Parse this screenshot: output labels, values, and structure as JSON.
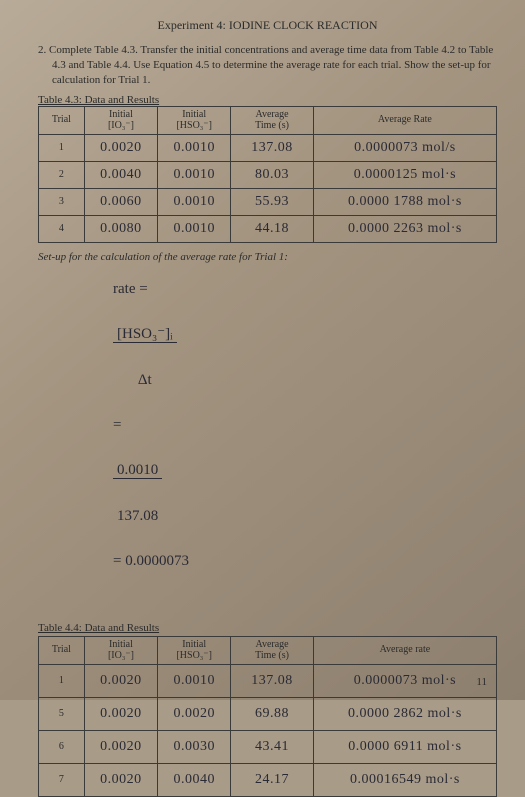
{
  "header": {
    "title": "Experiment 4: IODINE CLOCK REACTION"
  },
  "question": {
    "num": "2.",
    "text": "Complete Table 4.3. Transfer the initial concentrations and average time data from Table 4.2 to Table 4.3 and Table 4.4. Use Equation 4.5 to determine the average rate for each trial. Show the set-up for calculation for Trial 1."
  },
  "table43": {
    "caption": "Table 4.3: Data and Results",
    "headers": {
      "trial": "Trial",
      "io_top": "Initial",
      "io_bot": "[IO₃⁻]",
      "hso_top": "Initial",
      "hso_bot": "[HSO₃⁻]",
      "time_top": "Average",
      "time_bot": "Time (s)",
      "rate": "Average Rate"
    },
    "rows": [
      {
        "trial": "1",
        "io": "0.0020",
        "hso": "0.0010",
        "time": "137.08",
        "rate": "0.0000073 mol/s"
      },
      {
        "trial": "2",
        "io": "0.0040",
        "hso": "0.0010",
        "time": "80.03",
        "rate": "0.0000125 mol·s"
      },
      {
        "trial": "3",
        "io": "0.0060",
        "hso": "0.0010",
        "time": "55.93",
        "rate": "0.0000 1788 mol·s"
      },
      {
        "trial": "4",
        "io": "0.0080",
        "hso": "0.0010",
        "time": "44.18",
        "rate": "0.0000 2263 mol·s"
      }
    ]
  },
  "setup": {
    "label": "Set-up for the calculation of the average rate for Trial 1:",
    "lhs": "rate =",
    "f1_top": "[HSO₃⁻]ᵢ",
    "f1_bot": "Δt",
    "eq1": "=",
    "f2_top": "0.0010",
    "f2_bot": "137.08",
    "rhs": "= 0.0000073"
  },
  "table44": {
    "caption": "Table 4.4: Data and Results",
    "headers": {
      "trial": "Trial",
      "io_top": "Initial",
      "io_bot": "[IO₃⁻]",
      "hso_top": "Initial",
      "hso_bot": "[HSO₃⁻]",
      "time_top": "Average",
      "time_bot": "Time (s)",
      "rate": "Average rate"
    },
    "rows": [
      {
        "trial": "1",
        "io": "0.0020",
        "hso": "0.0010",
        "time": "137.08",
        "rate": "0.0000073 mol·s"
      },
      {
        "trial": "5",
        "io": "0.0020",
        "hso": "0.0020",
        "time": "69.88",
        "rate": "0.0000 2862 mol·s"
      },
      {
        "trial": "6",
        "io": "0.0020",
        "hso": "0.0030",
        "time": "43.41",
        "rate": "0.0000 6911 mol·s"
      },
      {
        "trial": "7",
        "io": "0.0020",
        "hso": "0.0040",
        "time": "24.17",
        "rate": "0.00016549 mol·s"
      }
    ]
  },
  "page_number": "11"
}
